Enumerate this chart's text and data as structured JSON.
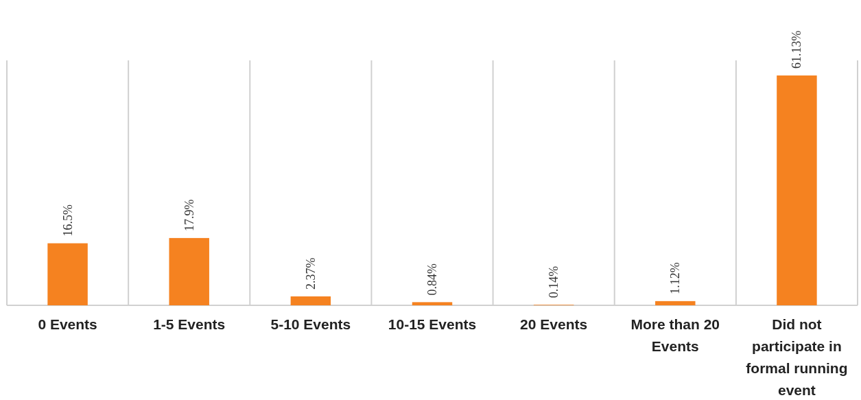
{
  "chart_data": {
    "type": "bar",
    "categories": [
      "0 Events",
      "1-5 Events",
      "5-10 Events",
      "10-15 Events",
      "20 Events",
      "More than 20 Events",
      "Did not participate in formal running event"
    ],
    "values": [
      16.5,
      17.9,
      2.37,
      0.84,
      0.14,
      1.12,
      61.13
    ],
    "value_labels": [
      "16.5%",
      "17.9%",
      "2.37%",
      "0.84%",
      "0.14%",
      "1.12%",
      "61.13%"
    ],
    "color": "#f58220",
    "grid": "x"
  }
}
